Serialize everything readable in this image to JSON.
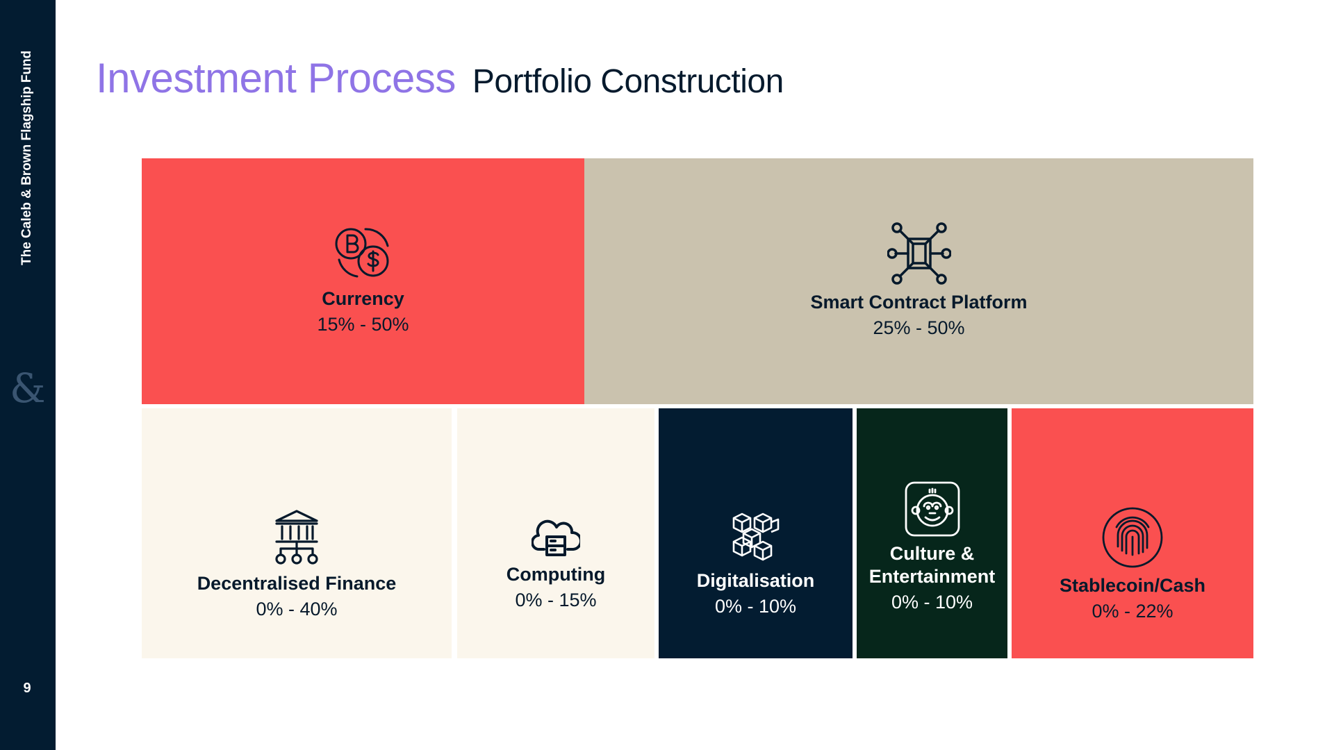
{
  "sidebar": {
    "fund_name": "The Caleb & Brown Flagship Fund",
    "logo_glyph": "&",
    "page_number": "9"
  },
  "header": {
    "title": "Investment Process",
    "subtitle": "Portfolio Construction"
  },
  "colors": {
    "sidebar_bg": "#031c31",
    "title_purple": "#8f74e6",
    "red": "#fa5050",
    "beige": "#cac2ae",
    "cream": "#fbf6ec",
    "navy": "#031c31",
    "dark_green": "#06261b"
  },
  "allocations": [
    {
      "name": "Currency",
      "range": "15% - 50%",
      "icon": "bitcoin-dollar-exchange-icon",
      "min_pct": 15,
      "max_pct": 50
    },
    {
      "name": "Smart Contract Platform",
      "range": "25% - 50%",
      "icon": "network-nodes-icon",
      "min_pct": 25,
      "max_pct": 50
    },
    {
      "name": "Decentralised Finance",
      "range": "0% - 40%",
      "icon": "bank-network-icon",
      "min_pct": 0,
      "max_pct": 40
    },
    {
      "name": "Computing",
      "range": "0% - 15%",
      "icon": "cloud-server-icon",
      "min_pct": 0,
      "max_pct": 15
    },
    {
      "name": "Digitalisation",
      "range": "0% - 10%",
      "icon": "blocks-icon",
      "min_pct": 0,
      "max_pct": 10
    },
    {
      "name": "Culture &\nEntertainment",
      "range": "0% - 10%",
      "icon": "ape-face-icon",
      "min_pct": 0,
      "max_pct": 10
    },
    {
      "name": "Stablecoin/Cash",
      "range": "0% - 22%",
      "icon": "fingerprint-icon",
      "min_pct": 0,
      "max_pct": 22
    }
  ]
}
